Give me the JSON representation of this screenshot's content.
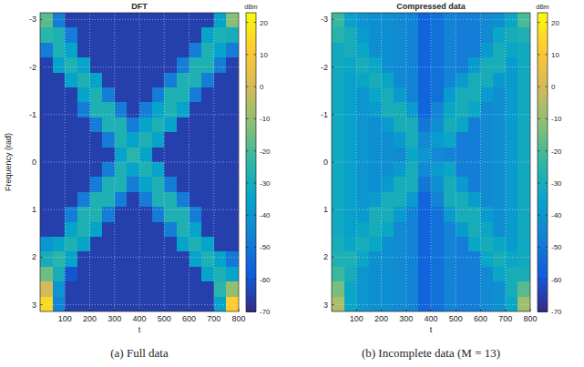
{
  "chart_data": [
    {
      "type": "heatmap",
      "title": "DFT",
      "caption": "(a) Full data",
      "x_label": "t",
      "y_label": "Frequency (rad)",
      "xlim": [
        0,
        800
      ],
      "xticks": [
        100,
        200,
        300,
        400,
        500,
        600,
        700,
        800
      ],
      "ylim": [
        3.1416,
        -3.1416
      ],
      "yticks": [
        -3,
        -2,
        -1,
        0,
        1,
        2,
        3
      ],
      "grid": true,
      "x_edges": [
        0,
        50,
        100,
        150,
        200,
        250,
        300,
        350,
        400,
        450,
        500,
        550,
        600,
        650,
        700,
        750,
        800
      ],
      "y_edges": [
        -3.1416,
        -2.8274,
        -2.5133,
        -2.1991,
        -1.885,
        -1.5708,
        -1.2566,
        -0.9425,
        -0.6283,
        -0.3142,
        0,
        0.3142,
        0.6283,
        0.9425,
        1.2566,
        1.5708,
        1.885,
        2.1991,
        2.5133,
        2.8274,
        3.1416
      ],
      "cells": [
        [
          -18,
          -48,
          -65,
          -65,
          -65,
          -65,
          -65,
          -65,
          -65,
          -65,
          -65,
          -65,
          -65,
          -65,
          -35,
          -12
        ],
        [
          -25,
          -28,
          -48,
          -65,
          -65,
          -65,
          -65,
          -65,
          -65,
          -65,
          -65,
          -65,
          -65,
          -35,
          -28,
          -30
        ],
        [
          -48,
          -28,
          -35,
          -65,
          -65,
          -65,
          -65,
          -65,
          -65,
          -65,
          -65,
          -65,
          -48,
          -28,
          -35,
          -48
        ],
        [
          -65,
          -35,
          -28,
          -35,
          -65,
          -65,
          -65,
          -65,
          -65,
          -65,
          -65,
          -48,
          -28,
          -28,
          -48,
          -65
        ],
        [
          -65,
          -65,
          -35,
          -28,
          -35,
          -65,
          -65,
          -65,
          -65,
          -65,
          -48,
          -28,
          -28,
          -48,
          -65,
          -65
        ],
        [
          -65,
          -65,
          -65,
          -35,
          -28,
          -48,
          -65,
          -65,
          -65,
          -48,
          -28,
          -28,
          -48,
          -65,
          -65,
          -65
        ],
        [
          -65,
          -65,
          -65,
          -48,
          -28,
          -28,
          -48,
          -65,
          -48,
          -35,
          -28,
          -35,
          -65,
          -65,
          -65,
          -65
        ],
        [
          -65,
          -65,
          -65,
          -65,
          -48,
          -28,
          -28,
          -48,
          -35,
          -28,
          -35,
          -65,
          -65,
          -65,
          -65,
          -65
        ],
        [
          -65,
          -65,
          -65,
          -65,
          -65,
          -48,
          -28,
          -35,
          -28,
          -35,
          -65,
          -65,
          -65,
          -65,
          -65,
          -65
        ],
        [
          -65,
          -65,
          -65,
          -65,
          -65,
          -65,
          -35,
          -25,
          -35,
          -65,
          -65,
          -65,
          -65,
          -65,
          -65,
          -65
        ],
        [
          -65,
          -65,
          -65,
          -65,
          -65,
          -48,
          -28,
          -35,
          -28,
          -35,
          -65,
          -65,
          -65,
          -65,
          -65,
          -65
        ],
        [
          -65,
          -65,
          -65,
          -65,
          -48,
          -28,
          -28,
          -48,
          -35,
          -28,
          -48,
          -65,
          -65,
          -65,
          -65,
          -65
        ],
        [
          -65,
          -65,
          -65,
          -48,
          -28,
          -28,
          -48,
          -65,
          -48,
          -28,
          -28,
          -48,
          -65,
          -65,
          -65,
          -65
        ],
        [
          -65,
          -65,
          -48,
          -28,
          -28,
          -48,
          -65,
          -65,
          -65,
          -48,
          -28,
          -28,
          -48,
          -65,
          -65,
          -65
        ],
        [
          -65,
          -65,
          -35,
          -28,
          -35,
          -65,
          -65,
          -65,
          -65,
          -65,
          -48,
          -28,
          -35,
          -65,
          -65,
          -65
        ],
        [
          -40,
          -35,
          -28,
          -35,
          -65,
          -65,
          -65,
          -65,
          -65,
          -65,
          -65,
          -35,
          -28,
          -35,
          -65,
          -65
        ],
        [
          -30,
          -25,
          -35,
          -65,
          -65,
          -65,
          -65,
          -65,
          -65,
          -65,
          -65,
          -65,
          -35,
          -28,
          -35,
          -50
        ],
        [
          -15,
          -30,
          -60,
          -65,
          -65,
          -65,
          -65,
          -65,
          -65,
          -65,
          -65,
          -65,
          -65,
          -35,
          -28,
          -35
        ],
        [
          0,
          -40,
          -65,
          -65,
          -65,
          -65,
          -65,
          -65,
          -65,
          -65,
          -65,
          -65,
          -65,
          -65,
          -25,
          -10
        ],
        [
          15,
          -45,
          -65,
          -65,
          -65,
          -65,
          -65,
          -65,
          -65,
          -65,
          -65,
          -65,
          -65,
          -65,
          -35,
          12
        ]
      ],
      "colorbar": {
        "label": "dBm",
        "lim": [
          -70,
          23
        ],
        "ticks": [
          20,
          10,
          0,
          -10,
          -20,
          -30,
          -40,
          -50,
          -60,
          -70
        ]
      }
    },
    {
      "type": "heatmap",
      "title": "Compressed data",
      "caption": "(b) Incomplete data (M = 13)",
      "x_label": "t",
      "xlim": [
        0,
        800
      ],
      "xticks": [
        100,
        200,
        300,
        400,
        500,
        600,
        700,
        800
      ],
      "ylim": [
        3.1416,
        -3.1416
      ],
      "yticks": [
        -3,
        -2,
        -1,
        0,
        1,
        2,
        3
      ],
      "grid": true,
      "x_edges": [
        0,
        50,
        100,
        150,
        200,
        250,
        300,
        350,
        400,
        450,
        500,
        550,
        600,
        650,
        700,
        750,
        800
      ],
      "y_edges": [
        -3.1416,
        -2.8274,
        -2.5133,
        -2.1991,
        -1.885,
        -1.5708,
        -1.2566,
        -0.9425,
        -0.6283,
        -0.3142,
        0,
        0.3142,
        0.6283,
        0.9425,
        1.2566,
        1.5708,
        1.885,
        2.1991,
        2.5133,
        2.8274,
        3.1416
      ],
      "cells": [
        [
          -22,
          -36,
          -40,
          -42,
          -42,
          -44,
          -46,
          -56,
          -52,
          -46,
          -48,
          -48,
          -44,
          -42,
          -34,
          -20
        ],
        [
          -26,
          -30,
          -38,
          -42,
          -42,
          -44,
          -46,
          -56,
          -52,
          -46,
          -48,
          -48,
          -44,
          -34,
          -30,
          -28
        ],
        [
          -32,
          -30,
          -34,
          -42,
          -42,
          -44,
          -46,
          -56,
          -52,
          -46,
          -48,
          -48,
          -38,
          -30,
          -34,
          -32
        ],
        [
          -32,
          -34,
          -30,
          -34,
          -42,
          -44,
          -46,
          -56,
          -52,
          -46,
          -48,
          -38,
          -30,
          -30,
          -38,
          -32
        ],
        [
          -32,
          -36,
          -34,
          -30,
          -34,
          -44,
          -46,
          -56,
          -52,
          -46,
          -38,
          -30,
          -30,
          -38,
          -38,
          -32
        ],
        [
          -32,
          -36,
          -40,
          -34,
          -30,
          -38,
          -46,
          -56,
          -52,
          -38,
          -30,
          -30,
          -38,
          -42,
          -38,
          -32
        ],
        [
          -32,
          -36,
          -40,
          -38,
          -30,
          -30,
          -38,
          -56,
          -46,
          -34,
          -30,
          -34,
          -44,
          -42,
          -38,
          -32
        ],
        [
          -32,
          -36,
          -40,
          -42,
          -38,
          -30,
          -30,
          -50,
          -42,
          -30,
          -34,
          -48,
          -44,
          -42,
          -38,
          -32
        ],
        [
          -32,
          -36,
          -40,
          -42,
          -42,
          -38,
          -30,
          -44,
          -38,
          -34,
          -48,
          -48,
          -44,
          -42,
          -38,
          -32
        ],
        [
          -32,
          -36,
          -40,
          -42,
          -42,
          -44,
          -34,
          -40,
          -44,
          -46,
          -48,
          -48,
          -44,
          -42,
          -38,
          -32
        ],
        [
          -32,
          -36,
          -40,
          -42,
          -42,
          -38,
          -30,
          -44,
          -38,
          -34,
          -48,
          -48,
          -44,
          -42,
          -38,
          -32
        ],
        [
          -32,
          -36,
          -40,
          -42,
          -38,
          -30,
          -30,
          -50,
          -42,
          -30,
          -38,
          -48,
          -44,
          -42,
          -38,
          -32
        ],
        [
          -32,
          -36,
          -40,
          -38,
          -30,
          -30,
          -38,
          -56,
          -46,
          -30,
          -30,
          -38,
          -44,
          -42,
          -38,
          -32
        ],
        [
          -32,
          -36,
          -38,
          -30,
          -30,
          -38,
          -46,
          -56,
          -52,
          -38,
          -30,
          -30,
          -38,
          -42,
          -38,
          -32
        ],
        [
          -32,
          -36,
          -34,
          -30,
          -34,
          -44,
          -46,
          -56,
          -52,
          -46,
          -38,
          -30,
          -34,
          -42,
          -38,
          -32
        ],
        [
          -30,
          -34,
          -30,
          -34,
          -42,
          -44,
          -46,
          -56,
          -52,
          -46,
          -48,
          -34,
          -30,
          -34,
          -38,
          -32
        ],
        [
          -28,
          -28,
          -34,
          -42,
          -42,
          -44,
          -46,
          -56,
          -52,
          -46,
          -48,
          -48,
          -34,
          -30,
          -34,
          -32
        ],
        [
          -22,
          -30,
          -40,
          -42,
          -42,
          -44,
          -46,
          -56,
          -52,
          -46,
          -48,
          -48,
          -44,
          -34,
          -30,
          -30
        ],
        [
          -14,
          -34,
          -40,
          -42,
          -42,
          -44,
          -46,
          -56,
          -52,
          -46,
          -48,
          -48,
          -44,
          -42,
          -30,
          -18
        ],
        [
          -6,
          -34,
          -40,
          -42,
          -42,
          -44,
          -46,
          -56,
          -52,
          -46,
          -48,
          -48,
          -44,
          -42,
          -34,
          -8
        ]
      ],
      "colorbar": {
        "label": "dBm",
        "lim": [
          -70,
          23
        ],
        "ticks": [
          20,
          10,
          0,
          -10,
          -20,
          -30,
          -40,
          -50,
          -60,
          -70
        ]
      }
    }
  ]
}
